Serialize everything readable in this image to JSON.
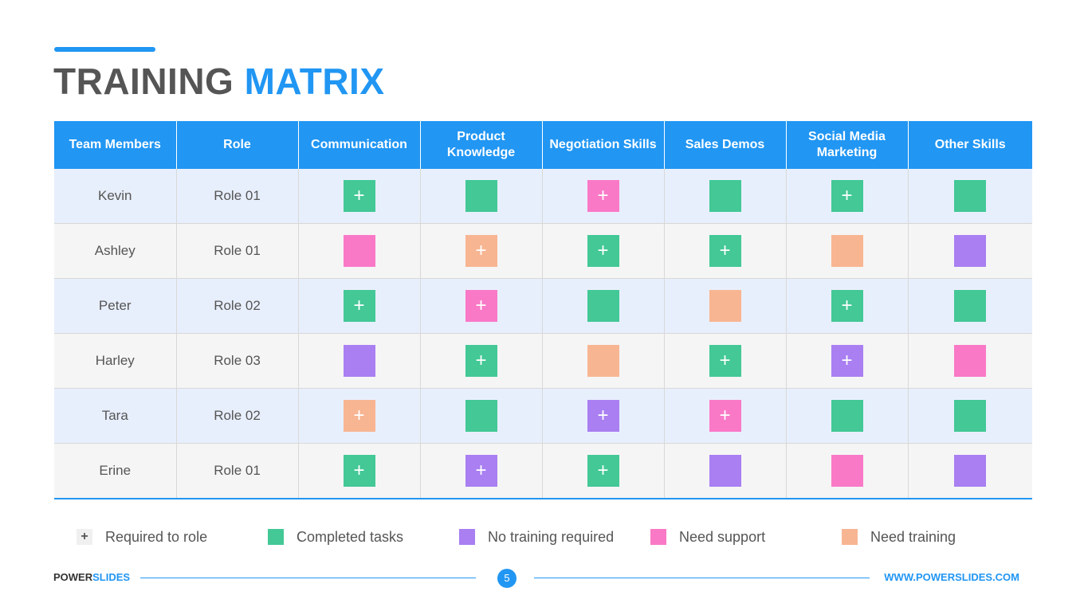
{
  "title": {
    "part1": "TRAINING",
    "part2": "MATRIX"
  },
  "colors": {
    "accent": "#2196f3",
    "completed": "#43c896",
    "no_training": "#a97ff2",
    "need_support": "#f979c7",
    "need_training": "#f8b592"
  },
  "table": {
    "headers": [
      "Team Members",
      "Role",
      "Communication",
      "Product Knowledge",
      "Negotiation Skills",
      "Sales Demos",
      "Social Media Marketing",
      "Other Skills"
    ],
    "rows": [
      {
        "name": "Kevin",
        "role": "Role 01",
        "cells": [
          {
            "status": "completed",
            "required": true
          },
          {
            "status": "completed",
            "required": false
          },
          {
            "status": "need_support",
            "required": true
          },
          {
            "status": "completed",
            "required": false
          },
          {
            "status": "completed",
            "required": true
          },
          {
            "status": "completed",
            "required": false
          }
        ]
      },
      {
        "name": "Ashley",
        "role": "Role 01",
        "cells": [
          {
            "status": "need_support",
            "required": false
          },
          {
            "status": "need_training",
            "required": true
          },
          {
            "status": "completed",
            "required": true
          },
          {
            "status": "completed",
            "required": true
          },
          {
            "status": "need_training",
            "required": false
          },
          {
            "status": "no_training",
            "required": false
          }
        ]
      },
      {
        "name": "Peter",
        "role": "Role 02",
        "cells": [
          {
            "status": "completed",
            "required": true
          },
          {
            "status": "need_support",
            "required": true
          },
          {
            "status": "completed",
            "required": false
          },
          {
            "status": "need_training",
            "required": false
          },
          {
            "status": "completed",
            "required": true
          },
          {
            "status": "completed",
            "required": false
          }
        ]
      },
      {
        "name": "Harley",
        "role": "Role 03",
        "cells": [
          {
            "status": "no_training",
            "required": false
          },
          {
            "status": "completed",
            "required": true
          },
          {
            "status": "need_training",
            "required": false
          },
          {
            "status": "completed",
            "required": true
          },
          {
            "status": "no_training",
            "required": true
          },
          {
            "status": "need_support",
            "required": false
          }
        ]
      },
      {
        "name": "Tara",
        "role": "Role 02",
        "cells": [
          {
            "status": "need_training",
            "required": true
          },
          {
            "status": "completed",
            "required": false
          },
          {
            "status": "no_training",
            "required": true
          },
          {
            "status": "need_support",
            "required": true
          },
          {
            "status": "completed",
            "required": false
          },
          {
            "status": "completed",
            "required": false
          }
        ]
      },
      {
        "name": "Erine",
        "role": "Role 01",
        "cells": [
          {
            "status": "completed",
            "required": true
          },
          {
            "status": "no_training",
            "required": true
          },
          {
            "status": "completed",
            "required": true
          },
          {
            "status": "no_training",
            "required": false
          },
          {
            "status": "need_support",
            "required": false
          },
          {
            "status": "no_training",
            "required": false
          }
        ]
      }
    ]
  },
  "plus_symbol": "+",
  "legend": [
    {
      "key": "required",
      "label": "Required to role",
      "icon": "plus-icon"
    },
    {
      "key": "completed",
      "label": "Completed tasks",
      "icon": "square"
    },
    {
      "key": "no_training",
      "label": "No training required",
      "icon": "square"
    },
    {
      "key": "need_support",
      "label": "Need support",
      "icon": "square"
    },
    {
      "key": "need_training",
      "label": "Need training",
      "icon": "square"
    }
  ],
  "footer": {
    "brand_part1": "POWER",
    "brand_part2": "SLIDES",
    "page_number": "5",
    "url": "WWW.POWERSLIDES.COM"
  }
}
